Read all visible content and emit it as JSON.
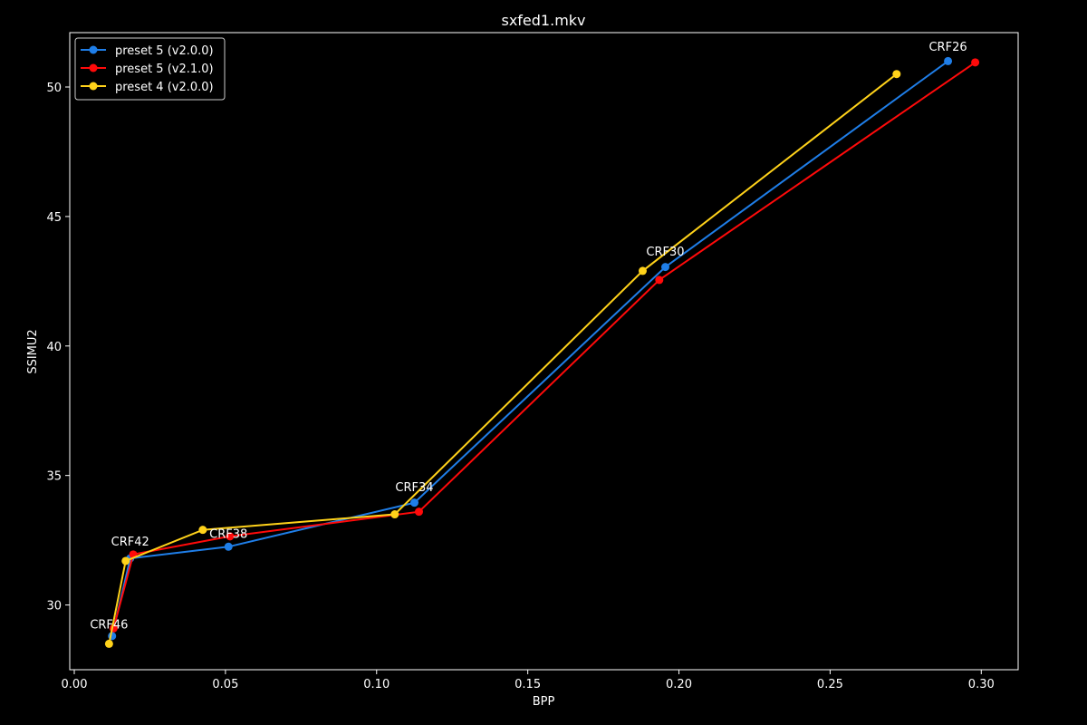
{
  "chart_data": {
    "type": "line",
    "title": "sxfed1.mkv",
    "xlabel": "BPP",
    "ylabel": "SSIMU2",
    "xlim": [
      -0.0015,
      0.3122
    ],
    "ylim": [
      27.5,
      52.1
    ],
    "xticks": [
      0.0,
      0.05,
      0.1,
      0.15,
      0.2,
      0.25,
      0.3
    ],
    "xtick_labels": [
      "0.00",
      "0.05",
      "0.10",
      "0.15",
      "0.20",
      "0.25",
      "0.30"
    ],
    "yticks": [
      30,
      35,
      40,
      45,
      50
    ],
    "ytick_labels": [
      "30",
      "35",
      "40",
      "45",
      "50"
    ],
    "grid": false,
    "legend_position": "top-left",
    "background": "#000000",
    "series": [
      {
        "name": "preset 5 (v2.0.0)",
        "color": "#1f7ee8",
        "x": [
          0.0125,
          0.0185,
          0.051,
          0.1125,
          0.1955,
          0.289
        ],
        "y": [
          28.8,
          31.8,
          32.25,
          33.95,
          43.05,
          51.0
        ]
      },
      {
        "name": "preset 5 (v2.1.0)",
        "color": "#ff0a0a",
        "x": [
          0.013,
          0.0195,
          0.0515,
          0.114,
          0.1935,
          0.298
        ],
        "y": [
          29.1,
          31.95,
          32.65,
          33.6,
          42.55,
          50.95
        ]
      },
      {
        "name": "preset 4 (v2.0.0)",
        "color": "#ffd21a",
        "x": [
          0.0115,
          0.017,
          0.0425,
          0.106,
          0.188,
          0.272
        ],
        "y": [
          28.5,
          31.7,
          32.9,
          33.5,
          42.9,
          50.5
        ]
      }
    ],
    "annotations": [
      {
        "text": "CRF46",
        "x": 0.0115,
        "y": 29.1
      },
      {
        "text": "CRF42",
        "x": 0.0185,
        "y": 32.3
      },
      {
        "text": "CRF38",
        "x": 0.051,
        "y": 32.6
      },
      {
        "text": "CRF34",
        "x": 0.1125,
        "y": 34.4
      },
      {
        "text": "CRF30",
        "x": 0.1955,
        "y": 43.5
      },
      {
        "text": "CRF26",
        "x": 0.289,
        "y": 51.4
      }
    ]
  }
}
